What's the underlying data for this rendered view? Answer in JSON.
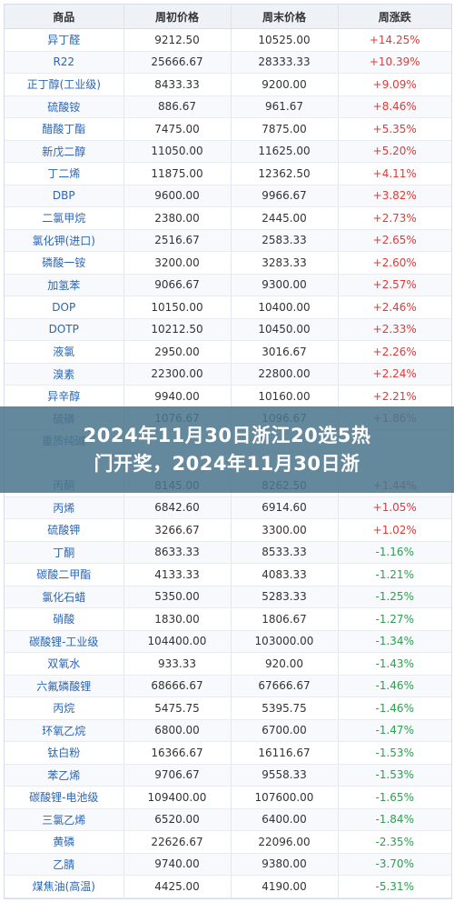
{
  "table": {
    "headers": [
      "商品",
      "周初价格",
      "周末价格",
      "周涨跌"
    ],
    "rows": [
      {
        "name": "异丁醛",
        "open": "9212.50",
        "close": "10525.00",
        "change": "+14.25%",
        "dir": "up"
      },
      {
        "name": "R22",
        "open": "25666.67",
        "close": "28333.33",
        "change": "+10.39%",
        "dir": "up"
      },
      {
        "name": "正丁醇(工业级)",
        "open": "8433.33",
        "close": "9200.00",
        "change": "+9.09%",
        "dir": "up"
      },
      {
        "name": "硫酸铵",
        "open": "886.67",
        "close": "961.67",
        "change": "+8.46%",
        "dir": "up"
      },
      {
        "name": "醋酸丁酯",
        "open": "7475.00",
        "close": "7875.00",
        "change": "+5.35%",
        "dir": "up"
      },
      {
        "name": "新戊二醇",
        "open": "11050.00",
        "close": "11625.00",
        "change": "+5.20%",
        "dir": "up"
      },
      {
        "name": "丁二烯",
        "open": "11875.00",
        "close": "12362.50",
        "change": "+4.11%",
        "dir": "up"
      },
      {
        "name": "DBP",
        "open": "9600.00",
        "close": "9966.67",
        "change": "+3.82%",
        "dir": "up"
      },
      {
        "name": "二氯甲烷",
        "open": "2380.00",
        "close": "2445.00",
        "change": "+2.73%",
        "dir": "up"
      },
      {
        "name": "氯化钾(进口)",
        "open": "2516.67",
        "close": "2583.33",
        "change": "+2.65%",
        "dir": "up"
      },
      {
        "name": "磷酸一铵",
        "open": "3200.00",
        "close": "3283.33",
        "change": "+2.60%",
        "dir": "up"
      },
      {
        "name": "加氢苯",
        "open": "9066.67",
        "close": "9300.00",
        "change": "+2.57%",
        "dir": "up"
      },
      {
        "name": "DOP",
        "open": "10150.00",
        "close": "10400.00",
        "change": "+2.46%",
        "dir": "up"
      },
      {
        "name": "DOTP",
        "open": "10212.50",
        "close": "10450.00",
        "change": "+2.33%",
        "dir": "up"
      },
      {
        "name": "液氯",
        "open": "2950.00",
        "close": "3016.67",
        "change": "+2.26%",
        "dir": "up"
      },
      {
        "name": "溴素",
        "open": "22300.00",
        "close": "22800.00",
        "change": "+2.24%",
        "dir": "up"
      },
      {
        "name": "异辛醇",
        "open": "9940.00",
        "close": "10160.00",
        "change": "+2.21%",
        "dir": "up"
      },
      {
        "name": "硫磺",
        "open": "1076.67",
        "close": "1096.67",
        "change": "+1.86%",
        "dir": "up"
      },
      {
        "name": "重质纯碱",
        "open": "",
        "close": "",
        "change": "",
        "dir": "up"
      },
      {
        "name": "",
        "open": "",
        "close": "",
        "change": "",
        "dir": "up"
      },
      {
        "name": "丙酮",
        "open": "8145.00",
        "close": "8262.50",
        "change": "+1.44%",
        "dir": "up"
      },
      {
        "name": "丙烯",
        "open": "6842.60",
        "close": "6914.60",
        "change": "+1.05%",
        "dir": "up"
      },
      {
        "name": "硫酸钾",
        "open": "3266.67",
        "close": "3300.00",
        "change": "+1.02%",
        "dir": "up"
      },
      {
        "name": "丁酮",
        "open": "8633.33",
        "close": "8533.33",
        "change": "-1.16%",
        "dir": "down"
      },
      {
        "name": "碳酸二甲酯",
        "open": "4133.33",
        "close": "4083.33",
        "change": "-1.21%",
        "dir": "down"
      },
      {
        "name": "氯化石蜡",
        "open": "5350.00",
        "close": "5283.33",
        "change": "-1.25%",
        "dir": "down"
      },
      {
        "name": "硝酸",
        "open": "1830.00",
        "close": "1806.67",
        "change": "-1.27%",
        "dir": "down"
      },
      {
        "name": "碳酸锂-工业级",
        "open": "104400.00",
        "close": "103000.00",
        "change": "-1.34%",
        "dir": "down"
      },
      {
        "name": "双氧水",
        "open": "933.33",
        "close": "920.00",
        "change": "-1.43%",
        "dir": "down"
      },
      {
        "name": "六氟磷酸锂",
        "open": "68666.67",
        "close": "67666.67",
        "change": "-1.46%",
        "dir": "down"
      },
      {
        "name": "丙烷",
        "open": "5475.75",
        "close": "5395.75",
        "change": "-1.46%",
        "dir": "down"
      },
      {
        "name": "环氧乙烷",
        "open": "6800.00",
        "close": "6700.00",
        "change": "-1.47%",
        "dir": "down"
      },
      {
        "name": "钛白粉",
        "open": "16366.67",
        "close": "16116.67",
        "change": "-1.53%",
        "dir": "down"
      },
      {
        "name": "苯乙烯",
        "open": "9706.67",
        "close": "9558.33",
        "change": "-1.53%",
        "dir": "down"
      },
      {
        "name": "碳酸锂-电池级",
        "open": "109400.00",
        "close": "107600.00",
        "change": "-1.65%",
        "dir": "down"
      },
      {
        "name": "三氯乙烯",
        "open": "6520.00",
        "close": "6400.00",
        "change": "-1.84%",
        "dir": "down"
      },
      {
        "name": "黄磷",
        "open": "22626.67",
        "close": "22096.00",
        "change": "-2.35%",
        "dir": "down"
      },
      {
        "name": "乙腈",
        "open": "9740.00",
        "close": "9380.00",
        "change": "-3.70%",
        "dir": "down"
      },
      {
        "name": "煤焦油(高温)",
        "open": "4425.00",
        "close": "4190.00",
        "change": "-5.31%",
        "dir": "down"
      }
    ]
  },
  "banner": {
    "line1": "2024年11月30日浙江20选5热",
    "line2": "门开奖，2024年11月30日浙"
  }
}
